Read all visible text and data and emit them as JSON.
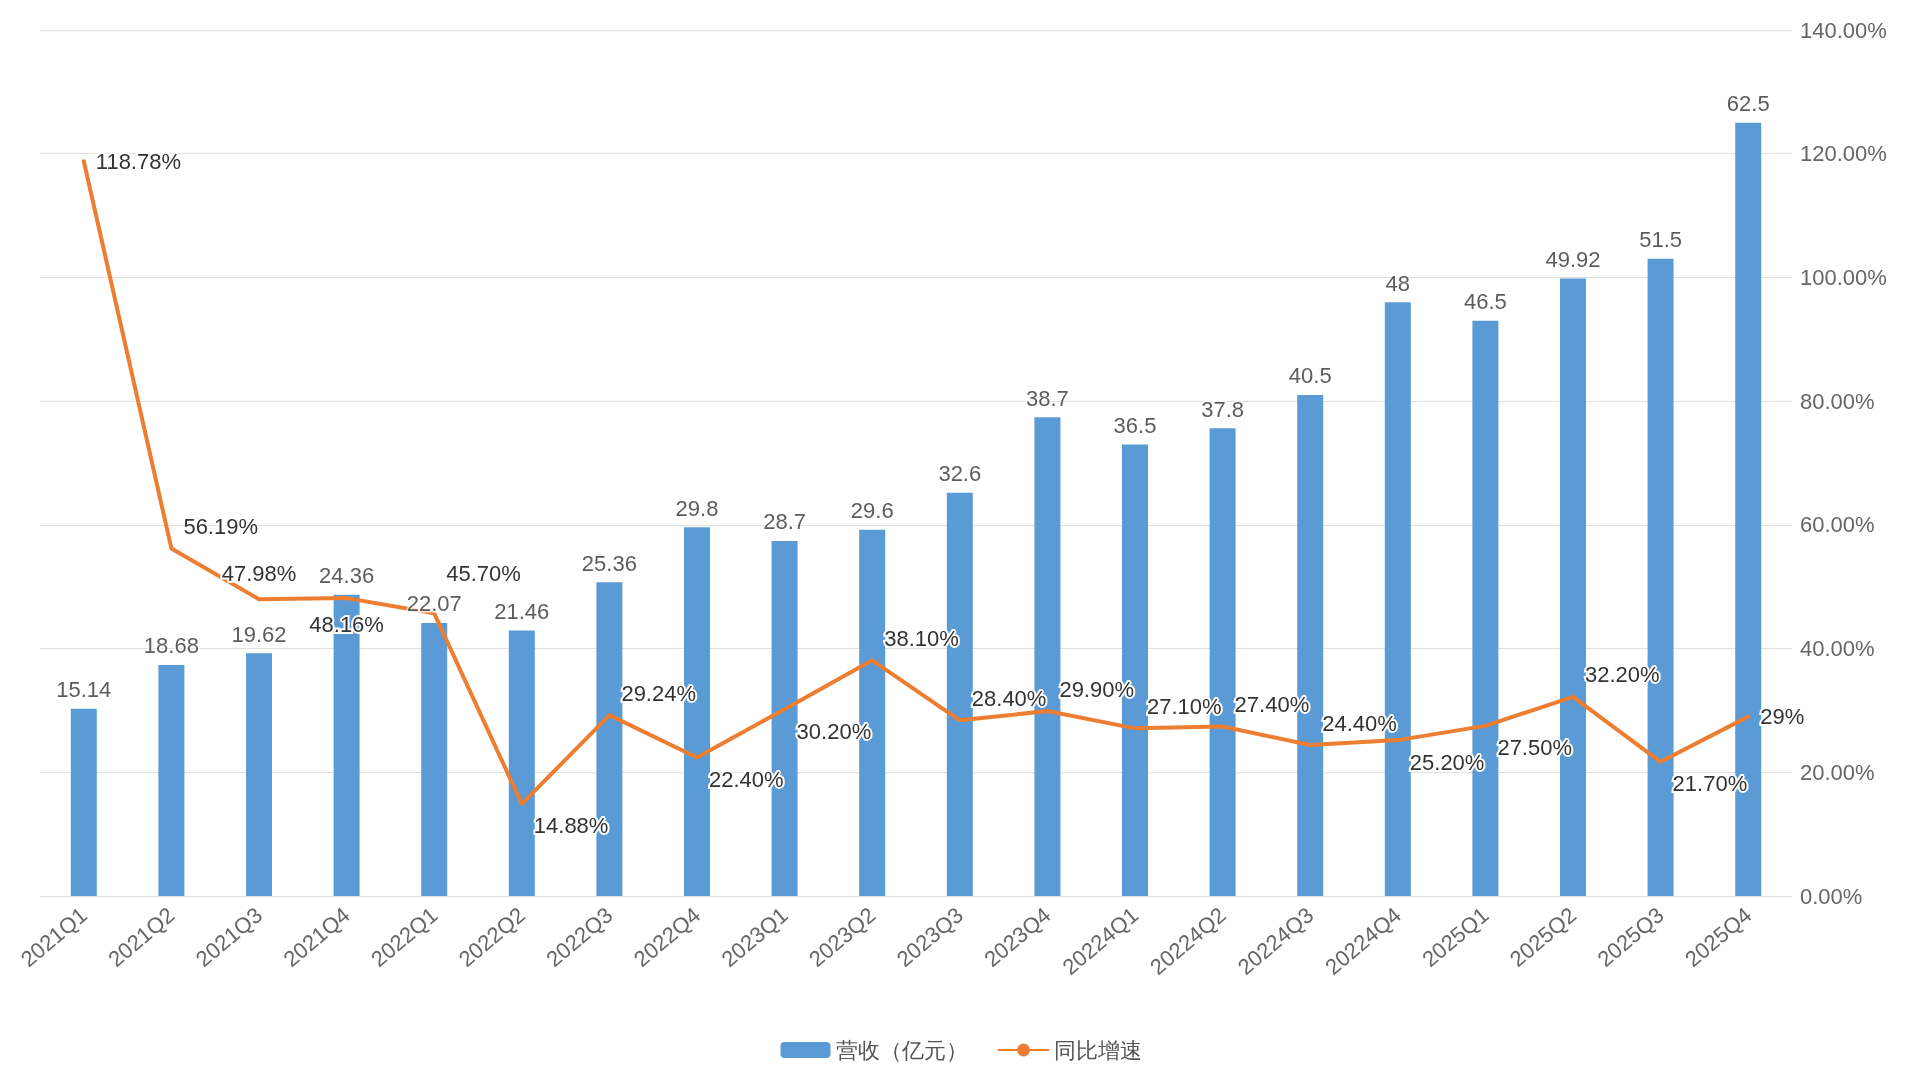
{
  "chart_data": {
    "type": "bar",
    "categories": [
      "2021Q1",
      "2021Q2",
      "2021Q3",
      "2021Q4",
      "2022Q1",
      "2022Q2",
      "2022Q3",
      "2022Q4",
      "2023Q1",
      "2023Q2",
      "2023Q3",
      "2023Q4",
      "20224Q1",
      "20224Q2",
      "20224Q3",
      "20224Q4",
      "2025Q1",
      "2025Q2",
      "2025Q3",
      "2025Q4"
    ],
    "series": [
      {
        "name": "营收（亿元）",
        "color": "#5b9bd5",
        "values": [
          15.14,
          18.68,
          19.62,
          24.36,
          22.07,
          21.46,
          25.36,
          29.8,
          28.7,
          29.6,
          32.6,
          38.7,
          36.5,
          37.8,
          40.5,
          48,
          46.5,
          49.92,
          51.5,
          62.5
        ]
      },
      {
        "name": "同比增速",
        "type": "line",
        "axis": "y2",
        "color": "#ed7d31",
        "values": [
          118.78,
          56.19,
          47.98,
          48.16,
          45.7,
          14.88,
          29.24,
          22.4,
          30.2,
          38.1,
          28.4,
          29.9,
          27.1,
          27.4,
          24.4,
          25.2,
          27.5,
          32.2,
          21.7,
          29
        ],
        "value_labels": [
          "118.78%",
          "56.19%",
          "47.98%",
          "48.16%",
          "45.70%",
          "14.88%",
          "29.24%",
          "22.40%",
          "30.20%",
          "38.10%",
          "28.40%",
          "29.90%",
          "27.10%",
          "27.40%",
          "24.40%",
          "25.20%",
          "27.50%",
          "32.20%",
          "21.70%",
          "29%"
        ]
      }
    ],
    "data_labels": true,
    "y2lim": [
      0,
      140
    ],
    "y2ticks": [
      {
        "value": 0,
        "label": "0.00%"
      },
      {
        "value": 20,
        "label": "20.00%"
      },
      {
        "value": 40,
        "label": "40.00%"
      },
      {
        "value": 60,
        "label": "60.00%"
      },
      {
        "value": 80,
        "label": "80.00%"
      },
      {
        "value": 100,
        "label": "100.00%"
      },
      {
        "value": 120,
        "label": "120.00%"
      },
      {
        "value": 140,
        "label": "140.00%"
      }
    ],
    "grid": "y",
    "legend": "bottom",
    "marker": "none",
    "line_style": "solid"
  }
}
